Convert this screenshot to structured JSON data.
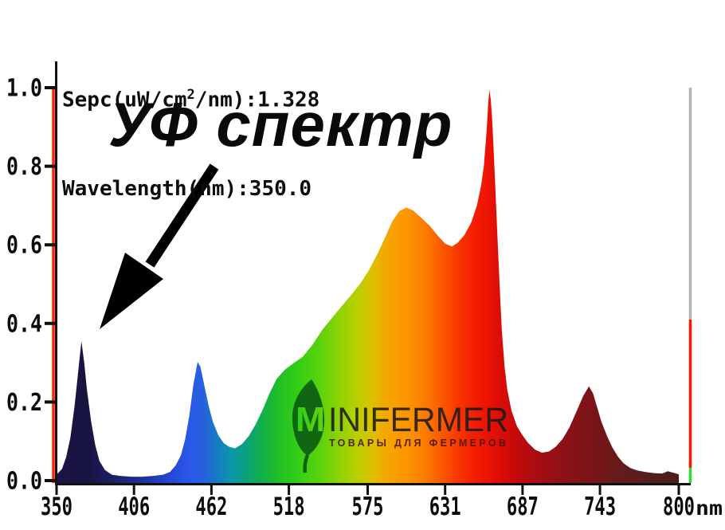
{
  "title_block": {
    "line1_pre": "Sepc(uW/cm",
    "line1_sup": "2",
    "line1_post": "/nm):1.328",
    "line2": "Wavelength(nm):350.0"
  },
  "annotation": {
    "text": "УФ спектр"
  },
  "logo": {
    "m": "M",
    "name": "INIFERMER",
    "tagline": "ТОВАРЫ ДЛЯ ФЕРМЕРОВ"
  },
  "axes": {
    "y_labels": [
      "1.0",
      "0.8",
      "0.6",
      "0.4",
      "0.2",
      "0.0"
    ],
    "x_labels": [
      "350",
      "406",
      "462",
      "518",
      "575",
      "631",
      "687",
      "743",
      "800"
    ],
    "x_unit": "nm"
  },
  "markers": {
    "cursor_color": "#ff2600",
    "axis_color": "#111111",
    "right_line_segments": [
      {
        "from_value": 1.0,
        "to_value": 0.41,
        "color": "#b3b3b3"
      },
      {
        "from_value": 0.41,
        "to_value": 0.032,
        "color": "#ff1500"
      },
      {
        "from_value": 0.032,
        "to_value": 0.0,
        "color": "#2ee02e"
      }
    ]
  },
  "chart_data": {
    "type": "area",
    "title": "",
    "xlabel": "nm",
    "ylabel": "",
    "xlim": [
      350,
      800
    ],
    "ylim": [
      0,
      1.0
    ],
    "grid": false,
    "x_ticks": [
      350,
      406,
      462,
      518,
      575,
      631,
      687,
      743,
      800
    ],
    "y_ticks": [
      1.0,
      0.8,
      0.6,
      0.4,
      0.2,
      0.0
    ],
    "peaks": [
      {
        "nm": 368,
        "value": 0.36,
        "note": "UV peak (annotated)"
      },
      {
        "nm": 452,
        "value": 0.3,
        "note": "blue peak"
      },
      {
        "nm": 603,
        "value": 0.7,
        "note": "broad orange peak"
      },
      {
        "nm": 663,
        "value": 1.0,
        "note": "red peak"
      },
      {
        "nm": 735,
        "value": 0.24,
        "note": "far-red peak"
      }
    ],
    "points": [
      [
        350,
        0.015
      ],
      [
        354,
        0.03
      ],
      [
        357,
        0.06
      ],
      [
        360,
        0.11
      ],
      [
        363,
        0.19
      ],
      [
        366,
        0.29
      ],
      [
        368,
        0.355
      ],
      [
        370,
        0.3
      ],
      [
        372,
        0.23
      ],
      [
        375,
        0.15
      ],
      [
        378,
        0.09
      ],
      [
        381,
        0.05
      ],
      [
        385,
        0.027
      ],
      [
        390,
        0.015
      ],
      [
        396,
        0.012
      ],
      [
        404,
        0.01
      ],
      [
        412,
        0.01
      ],
      [
        420,
        0.012
      ],
      [
        427,
        0.015
      ],
      [
        432,
        0.022
      ],
      [
        436,
        0.038
      ],
      [
        440,
        0.065
      ],
      [
        443,
        0.105
      ],
      [
        446,
        0.165
      ],
      [
        449,
        0.245
      ],
      [
        452,
        0.302
      ],
      [
        454,
        0.29
      ],
      [
        457,
        0.24
      ],
      [
        460,
        0.19
      ],
      [
        463,
        0.15
      ],
      [
        467,
        0.115
      ],
      [
        471,
        0.095
      ],
      [
        475,
        0.086
      ],
      [
        479,
        0.082
      ],
      [
        484,
        0.093
      ],
      [
        489,
        0.113
      ],
      [
        494,
        0.143
      ],
      [
        499,
        0.18
      ],
      [
        504,
        0.222
      ],
      [
        509,
        0.258
      ],
      [
        515,
        0.282
      ],
      [
        521,
        0.298
      ],
      [
        528,
        0.315
      ],
      [
        535,
        0.345
      ],
      [
        542,
        0.383
      ],
      [
        549,
        0.413
      ],
      [
        556,
        0.443
      ],
      [
        563,
        0.472
      ],
      [
        570,
        0.503
      ],
      [
        576,
        0.536
      ],
      [
        582,
        0.576
      ],
      [
        588,
        0.622
      ],
      [
        593,
        0.661
      ],
      [
        598,
        0.686
      ],
      [
        603,
        0.695
      ],
      [
        608,
        0.687
      ],
      [
        614,
        0.668
      ],
      [
        620,
        0.648
      ],
      [
        626,
        0.622
      ],
      [
        631,
        0.603
      ],
      [
        636,
        0.596
      ],
      [
        640,
        0.605
      ],
      [
        645,
        0.625
      ],
      [
        650,
        0.658
      ],
      [
        654,
        0.7
      ],
      [
        657,
        0.75
      ],
      [
        659,
        0.8
      ],
      [
        661,
        0.89
      ],
      [
        662,
        0.95
      ],
      [
        663,
        0.995
      ],
      [
        664,
        0.97
      ],
      [
        665,
        0.92
      ],
      [
        666,
        0.85
      ],
      [
        667,
        0.77
      ],
      [
        668,
        0.69
      ],
      [
        669,
        0.61
      ],
      [
        670,
        0.53
      ],
      [
        671,
        0.455
      ],
      [
        672,
        0.385
      ],
      [
        674,
        0.29
      ],
      [
        676,
        0.23
      ],
      [
        679,
        0.178
      ],
      [
        683,
        0.138
      ],
      [
        687,
        0.115
      ],
      [
        691,
        0.096
      ],
      [
        696,
        0.079
      ],
      [
        701,
        0.071
      ],
      [
        706,
        0.074
      ],
      [
        711,
        0.086
      ],
      [
        716,
        0.106
      ],
      [
        721,
        0.136
      ],
      [
        726,
        0.176
      ],
      [
        731,
        0.216
      ],
      [
        735,
        0.24
      ],
      [
        738,
        0.222
      ],
      [
        741,
        0.186
      ],
      [
        744,
        0.15
      ],
      [
        748,
        0.114
      ],
      [
        752,
        0.084
      ],
      [
        756,
        0.061
      ],
      [
        760,
        0.044
      ],
      [
        765,
        0.032
      ],
      [
        770,
        0.026
      ],
      [
        776,
        0.022
      ],
      [
        782,
        0.019
      ],
      [
        788,
        0.018
      ],
      [
        792,
        0.024
      ],
      [
        796,
        0.02
      ],
      [
        800,
        0.016
      ]
    ],
    "gradient": [
      [
        350,
        "#1b1545"
      ],
      [
        372,
        "#181440"
      ],
      [
        388,
        "#1b1d5e"
      ],
      [
        404,
        "#1d2a84"
      ],
      [
        418,
        "#1f37ae"
      ],
      [
        432,
        "#2247d2"
      ],
      [
        445,
        "#2a57ea"
      ],
      [
        455,
        "#2760e0"
      ],
      [
        465,
        "#1878c8"
      ],
      [
        476,
        "#0b95ab"
      ],
      [
        488,
        "#0aa376"
      ],
      [
        500,
        "#14b144"
      ],
      [
        512,
        "#23c024"
      ],
      [
        526,
        "#35cf15"
      ],
      [
        540,
        "#5ad20b"
      ],
      [
        554,
        "#8cd304"
      ],
      [
        566,
        "#b4d002"
      ],
      [
        577,
        "#d8c400"
      ],
      [
        586,
        "#f0ac00"
      ],
      [
        596,
        "#fb9d00"
      ],
      [
        606,
        "#fb9100"
      ],
      [
        616,
        "#fb7d00"
      ],
      [
        628,
        "#fa5a00"
      ],
      [
        640,
        "#f93800"
      ],
      [
        650,
        "#f52200"
      ],
      [
        660,
        "#ee1404"
      ],
      [
        670,
        "#dd0d06"
      ],
      [
        682,
        "#c60a0a"
      ],
      [
        694,
        "#ad0c10"
      ],
      [
        706,
        "#9a0f14"
      ],
      [
        720,
        "#8a1217"
      ],
      [
        737,
        "#7a1418"
      ],
      [
        755,
        "#681a1b"
      ],
      [
        775,
        "#591d1d"
      ],
      [
        800,
        "#4b1d1d"
      ]
    ]
  }
}
